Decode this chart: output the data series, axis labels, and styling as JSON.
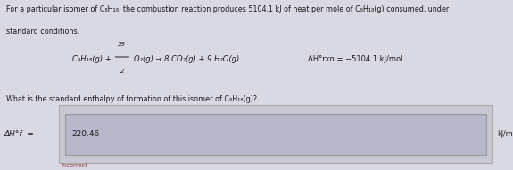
{
  "bg_color": "#d9d9e3",
  "text_color": "#1a1a1a",
  "title_line1": "For a particular isomer of C₈H₁₈, the combustion reaction produces 5104.1 kJ of heat per mole of C₈H₁₈(g) consumed, under",
  "title_line2": "standard conditions.",
  "eq_left": "C₈H₁₈(g) + ",
  "eq_frac_num": "25",
  "eq_frac_den": "2",
  "eq_right": "O₂(g) → 8 CO₂(g) + 9 H₂O(g)",
  "delta_hrxn": "ΔH°rxn = −5104.1 kJ/mol",
  "question": "What is the standard enthalpy of formation of this isomer of C₈H₁₈(g)?",
  "answer_label": "ΔH°f  =",
  "answer_label_sub": "i",
  "answer_value": "220.46",
  "answer_unit": "kJ/mol",
  "incorrect_label": "Incorrect",
  "outer_box_color": "#c8c8d4",
  "outer_box_edge": "#aaaaaa",
  "inner_box_color": "#b8b8cc",
  "inner_box_edge": "#999999",
  "incorrect_color": "#993333"
}
